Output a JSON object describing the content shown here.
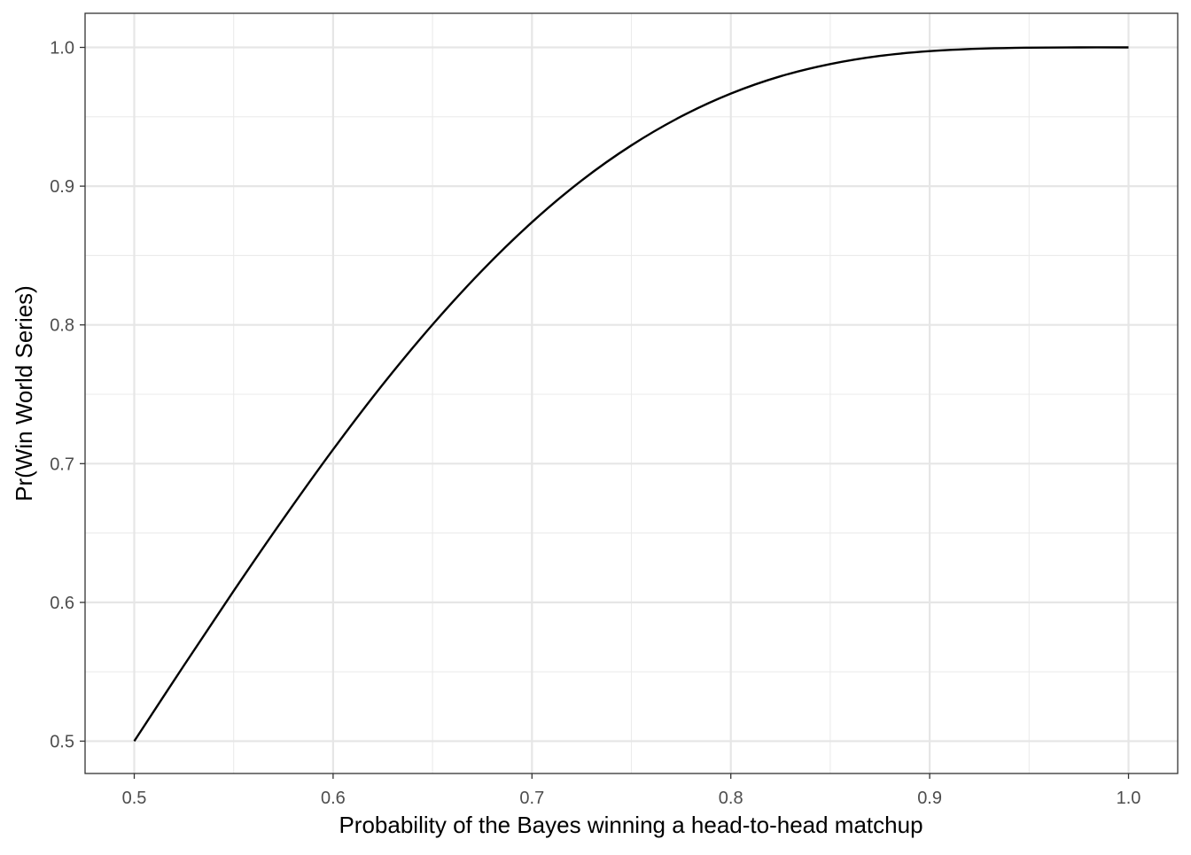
{
  "chart_data": {
    "type": "line",
    "title": "",
    "xlabel": "Probability of the Bayes winning a head-to-head matchup",
    "ylabel": "Pr(Win World Series)",
    "xlim": [
      0.5,
      1.0
    ],
    "ylim": [
      0.5,
      1.0
    ],
    "x_ticks": [
      "0.5",
      "0.6",
      "0.7",
      "0.8",
      "0.9",
      "1.0"
    ],
    "y_ticks": [
      "0.5",
      "0.6",
      "0.7",
      "0.8",
      "0.9",
      "1.0"
    ],
    "x_tick_values": [
      0.5,
      0.6,
      0.7,
      0.8,
      0.9,
      1.0
    ],
    "y_tick_values": [
      0.5,
      0.6,
      0.7,
      0.8,
      0.9,
      1.0
    ],
    "grid": true,
    "series": [
      {
        "color": "#000000",
        "x": [
          0.5,
          0.525,
          0.55,
          0.575,
          0.6,
          0.625,
          0.65,
          0.675,
          0.7,
          0.725,
          0.75,
          0.775,
          0.8,
          0.825,
          0.85,
          0.875,
          0.9,
          0.925,
          0.95,
          0.975,
          1.0
        ],
        "y": [
          0.5,
          0.5546,
          0.6083,
          0.6603,
          0.7102,
          0.7571,
          0.8002,
          0.8393,
          0.874,
          0.9041,
          0.9294,
          0.9502,
          0.9667,
          0.9792,
          0.988,
          0.9939,
          0.9973,
          0.9991,
          0.9998,
          1.0,
          1.0
        ]
      }
    ]
  }
}
